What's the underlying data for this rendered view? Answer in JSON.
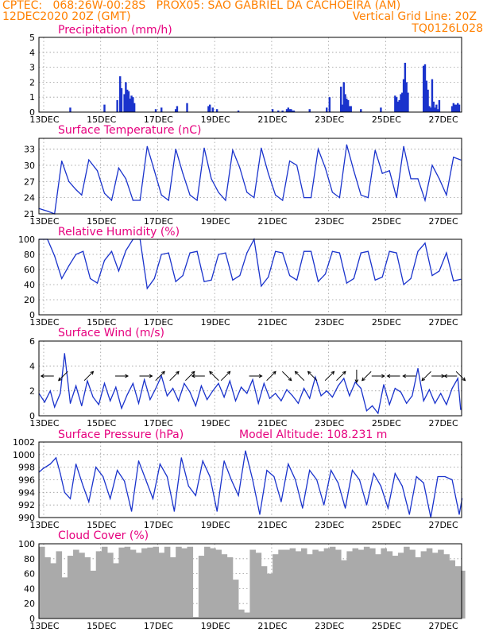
{
  "header": {
    "line1_left": "CPTEC:   068:26W-00:28S   PROX05: SAO GABRIEL DA CACHOEIRA (AM)",
    "line2_left": "12DEC2020 20Z (GMT)",
    "line2_right": "Vertical Grid Line: 20Z",
    "line3_right": "TQ0126L028"
  },
  "x_ticks": [
    "13DEC",
    "15DEC",
    "17DEC",
    "19DEC",
    "21DEC",
    "23DEC",
    "25DEC",
    "27DEC"
  ],
  "colors": {
    "series": "#1a33cc",
    "cloud": "#aaaaaa",
    "title": "#e6007e",
    "header": "#ff8000"
  },
  "panels": {
    "precip": {
      "title": "Precipitation (mm/h)"
    },
    "temp": {
      "title": "Surface Temperature (nC)"
    },
    "rh": {
      "title": "Relative Humidity (%)"
    },
    "wind": {
      "title": "Surface Wind (m/s)"
    },
    "pres": {
      "title": "Surface Pressure (hPa)",
      "extra": "Model Altitude: 108.231 m"
    },
    "cloud": {
      "title": "Cloud Cover (%)"
    }
  },
  "chart_data": [
    {
      "type": "bar",
      "title": "Precipitation (mm/h)",
      "x_unit": "days since 12DEC2020 20Z",
      "ylim": [
        0,
        5
      ],
      "yticks": [
        0,
        1,
        2,
        3,
        4,
        5
      ],
      "grid": true,
      "x": [
        1.1,
        2.3,
        2.75,
        2.85,
        2.9,
        3.0,
        3.05,
        3.1,
        3.15,
        3.2,
        3.25,
        3.3,
        3.35,
        4.1,
        4.3,
        4.8,
        4.85,
        5.2,
        5.95,
        6.0,
        6.1,
        6.25,
        7.0,
        8.2,
        8.4,
        8.55,
        8.7,
        8.75,
        8.8,
        8.85,
        8.9,
        8.95,
        9.5,
        10.1,
        10.2,
        10.6,
        10.65,
        10.7,
        10.75,
        10.8,
        10.85,
        10.9,
        10.95,
        11.3,
        12.0,
        12.5,
        12.55,
        12.6,
        12.65,
        12.7,
        12.75,
        12.8,
        12.85,
        12.9,
        12.95,
        13.5,
        13.55,
        13.6,
        13.65,
        13.7,
        13.75,
        13.8,
        13.85,
        13.9,
        13.95,
        14.0,
        14.05,
        14.5,
        14.55,
        14.6,
        14.65,
        14.7,
        14.75
      ],
      "values": [
        0.3,
        0.5,
        0.8,
        2.4,
        1.6,
        1.2,
        2.0,
        1.5,
        1.4,
        0.9,
        1.1,
        1.0,
        0.6,
        0.2,
        0.3,
        0.2,
        0.4,
        0.6,
        0.4,
        0.5,
        0.3,
        0.2,
        0.1,
        0.2,
        0.1,
        0.1,
        0.2,
        0.3,
        0.2,
        0.2,
        0.1,
        0.1,
        0.2,
        0.3,
        1.0,
        1.7,
        0.5,
        2.0,
        1.2,
        0.9,
        0.8,
        0.4,
        0.4,
        0.2,
        0.3,
        1.1,
        1.0,
        0.7,
        0.8,
        1.2,
        1.3,
        2.2,
        3.3,
        2.0,
        1.3,
        3.1,
        3.2,
        2.1,
        1.5,
        0.4,
        0.3,
        2.2,
        0.7,
        0.3,
        0.5,
        0.2,
        0.8,
        0.4,
        0.6,
        0.5,
        0.5,
        0.6,
        0.5
      ]
    },
    {
      "type": "line",
      "title": "Surface Temperature (nC)",
      "x_unit": "days since 12DEC2020 20Z",
      "ylim": [
        21,
        35
      ],
      "yticks": [
        21,
        24,
        27,
        30,
        33
      ],
      "grid": true,
      "x": [
        0,
        0.3,
        0.55,
        0.8,
        1.05,
        1.3,
        1.5,
        1.75,
        2.05,
        2.3,
        2.55,
        2.8,
        3.05,
        3.3,
        3.55,
        3.8,
        4.05,
        4.3,
        4.55,
        4.8,
        5.05,
        5.3,
        5.55,
        5.8,
        6.05,
        6.3,
        6.55,
        6.8,
        7.05,
        7.3,
        7.55,
        7.8,
        8.05,
        8.3,
        8.55,
        8.8,
        9.05,
        9.3,
        9.55,
        9.8,
        10.05,
        10.3,
        10.55,
        10.8,
        11.05,
        11.3,
        11.55,
        11.8,
        12.05,
        12.3,
        12.55,
        12.8,
        13.05,
        13.3,
        13.55,
        13.8,
        14.05,
        14.3,
        14.55,
        14.8
      ],
      "values": [
        22.0,
        21.5,
        21.0,
        30.8,
        27.0,
        25.5,
        24.5,
        31.0,
        29.0,
        24.8,
        23.5,
        29.5,
        27.5,
        23.5,
        23.5,
        33.5,
        29.0,
        24.5,
        23.5,
        33.0,
        28.5,
        24.5,
        23.5,
        33.2,
        27.5,
        25.0,
        23.5,
        32.8,
        29.5,
        25.0,
        24.0,
        33.2,
        28.5,
        24.5,
        23.5,
        30.8,
        30.0,
        24.0,
        24.0,
        33.0,
        29.5,
        25.0,
        24.0,
        33.8,
        29.0,
        24.5,
        24.0,
        32.8,
        28.5,
        29.0,
        24.0,
        33.5,
        27.5,
        27.5,
        23.5,
        30.0,
        27.5,
        24.5,
        31.5,
        31.0
      ]
    },
    {
      "type": "line",
      "title": "Relative Humidity (%)",
      "x_unit": "days since 12DEC2020 20Z",
      "ylim": [
        0,
        100
      ],
      "yticks": [
        0,
        20,
        40,
        60,
        80,
        100
      ],
      "grid": true,
      "x": [
        0,
        0.3,
        0.55,
        0.8,
        1.05,
        1.3,
        1.55,
        1.8,
        2.05,
        2.3,
        2.55,
        2.8,
        3.05,
        3.3,
        3.55,
        3.8,
        4.05,
        4.3,
        4.55,
        4.8,
        5.05,
        5.3,
        5.55,
        5.8,
        6.05,
        6.3,
        6.55,
        6.8,
        7.05,
        7.3,
        7.55,
        7.8,
        8.05,
        8.3,
        8.55,
        8.8,
        9.05,
        9.3,
        9.55,
        9.8,
        10.05,
        10.3,
        10.55,
        10.8,
        11.05,
        11.3,
        11.55,
        11.8,
        12.05,
        12.3,
        12.55,
        12.8,
        13.05,
        13.3,
        13.55,
        13.8,
        14.05,
        14.3,
        14.55,
        14.8
      ],
      "values": [
        100,
        100,
        78,
        48,
        65,
        80,
        84,
        48,
        42,
        72,
        84,
        58,
        85,
        100,
        100,
        35,
        48,
        80,
        82,
        44,
        52,
        82,
        84,
        44,
        46,
        80,
        82,
        46,
        52,
        82,
        100,
        38,
        50,
        84,
        82,
        52,
        46,
        84,
        84,
        44,
        54,
        84,
        82,
        42,
        48,
        82,
        84,
        46,
        50,
        84,
        82,
        40,
        48,
        84,
        95,
        52,
        58,
        82,
        45,
        47
      ]
    },
    {
      "type": "line",
      "title": "Surface Wind (m/s)",
      "x_unit": "days since 12DEC2020 20Z",
      "ylim": [
        0,
        6
      ],
      "yticks": [
        0,
        2,
        4,
        6
      ],
      "grid": true,
      "x": [
        0,
        0.2,
        0.4,
        0.55,
        0.75,
        0.9,
        1.1,
        1.3,
        1.5,
        1.7,
        1.9,
        2.1,
        2.3,
        2.5,
        2.7,
        2.9,
        3.1,
        3.3,
        3.5,
        3.7,
        3.9,
        4.1,
        4.3,
        4.5,
        4.7,
        4.9,
        5.1,
        5.3,
        5.5,
        5.7,
        5.9,
        6.1,
        6.3,
        6.5,
        6.7,
        6.9,
        7.1,
        7.3,
        7.5,
        7.7,
        7.9,
        8.1,
        8.3,
        8.5,
        8.7,
        8.9,
        9.1,
        9.3,
        9.5,
        9.7,
        9.9,
        10.1,
        10.3,
        10.5,
        10.7,
        10.9,
        11.1,
        11.3,
        11.5,
        11.7,
        11.9,
        12.1,
        12.3,
        12.5,
        12.7,
        12.9,
        13.1,
        13.3,
        13.5,
        13.7,
        13.9,
        14.1,
        14.3,
        14.5,
        14.7,
        14.8
      ],
      "values": [
        1.8,
        1.1,
        2.0,
        0.7,
        1.8,
        5.0,
        1.0,
        2.4,
        0.8,
        2.8,
        1.5,
        0.9,
        2.6,
        1.2,
        2.3,
        0.6,
        1.7,
        2.6,
        1.0,
        2.9,
        1.3,
        2.2,
        3.2,
        1.6,
        2.2,
        1.2,
        2.6,
        1.9,
        0.8,
        2.4,
        1.3,
        2.0,
        2.6,
        1.5,
        2.8,
        1.2,
        2.3,
        1.8,
        2.9,
        1.0,
        2.6,
        1.4,
        1.8,
        1.2,
        2.1,
        1.6,
        1.0,
        2.2,
        1.4,
        3.1,
        1.6,
        2.0,
        1.5,
        2.4,
        3.0,
        1.6,
        2.7,
        2.2,
        0.4,
        0.8,
        0.2,
        2.5,
        0.9,
        2.2,
        1.9,
        1.0,
        1.6,
        3.8,
        1.2,
        2.1,
        1.0,
        1.8,
        0.9,
        2.2,
        3.0,
        0.5
      ],
      "vectors_x": [
        0.3,
        0.85,
        1.75,
        2.9,
        3.75,
        4.25,
        4.75,
        5.3,
        5.6,
        6.15,
        6.55,
        7.6,
        8.15,
        8.7,
        9.15,
        9.6,
        10.2,
        10.6,
        11.15,
        11.5,
        11.9,
        12.45,
        13.0,
        13.6,
        14.0,
        14.45,
        14.8
      ],
      "vectors_dir": [
        "W",
        "SW",
        "NE",
        "E",
        "E",
        "NE",
        "NE",
        "NE",
        "W",
        "NW",
        "NE",
        "E",
        "NE",
        "SE",
        "NW",
        "NW",
        "NE",
        "NE",
        "S",
        "SW",
        "E",
        "W",
        "W",
        "SW",
        "E",
        "W",
        "SE"
      ]
    },
    {
      "type": "line",
      "title": "Surface Pressure (hPa)",
      "x_unit": "days since 12DEC2020 20Z",
      "ylim": [
        990,
        1002
      ],
      "yticks": [
        990,
        992,
        994,
        996,
        998,
        1000,
        1002
      ],
      "grid": true,
      "x": [
        0,
        0.15,
        0.4,
        0.6,
        0.75,
        0.9,
        1.1,
        1.3,
        1.55,
        1.75,
        2.0,
        2.25,
        2.5,
        2.75,
        3.0,
        3.25,
        3.5,
        3.75,
        4.0,
        4.25,
        4.5,
        4.75,
        5.0,
        5.25,
        5.5,
        5.75,
        6.0,
        6.25,
        6.5,
        6.75,
        7.0,
        7.25,
        7.5,
        7.75,
        8.0,
        8.25,
        8.5,
        8.75,
        9.0,
        9.25,
        9.5,
        9.75,
        10.0,
        10.25,
        10.5,
        10.75,
        11.0,
        11.25,
        11.5,
        11.75,
        12.0,
        12.25,
        12.5,
        12.75,
        13.0,
        13.25,
        13.5,
        13.75,
        14.0,
        14.25,
        14.5,
        14.75,
        14.85
      ],
      "values": [
        997.2,
        997.8,
        998.5,
        999.5,
        997.0,
        994.0,
        993.0,
        998.5,
        995.0,
        992.5,
        998.0,
        996.5,
        993.0,
        997.5,
        995.8,
        991.0,
        999.0,
        996.0,
        993.0,
        998.5,
        996.5,
        991.0,
        999.5,
        995.0,
        993.5,
        999.0,
        996.5,
        991.0,
        999.0,
        996.0,
        993.5,
        1000.6,
        996.0,
        990.5,
        997.5,
        996.5,
        992.5,
        998.5,
        996.0,
        991.5,
        997.5,
        996.0,
        992.0,
        997.5,
        995.5,
        991.5,
        997.5,
        996.0,
        992.0,
        997.0,
        995.0,
        991.5,
        997.0,
        995.0,
        990.5,
        996.5,
        995.5,
        990.0,
        996.5,
        996.5,
        996.0,
        990.5,
        993.0
      ]
    },
    {
      "type": "bar",
      "title": "Cloud Cover (%)",
      "x_unit": "days since 12DEC2020 20Z",
      "ylim": [
        0,
        100
      ],
      "yticks": [
        0,
        20,
        40,
        60,
        80,
        100
      ],
      "grid": true,
      "x": [
        0.1,
        0.3,
        0.5,
        0.7,
        0.9,
        1.1,
        1.3,
        1.5,
        1.7,
        1.9,
        2.1,
        2.3,
        2.5,
        2.7,
        2.9,
        3.1,
        3.3,
        3.5,
        3.7,
        3.9,
        4.1,
        4.3,
        4.5,
        4.7,
        4.9,
        5.1,
        5.3,
        5.5,
        5.7,
        5.9,
        6.1,
        6.3,
        6.5,
        6.7,
        6.9,
        7.1,
        7.3,
        7.5,
        7.7,
        7.9,
        8.1,
        8.3,
        8.5,
        8.7,
        8.9,
        9.1,
        9.3,
        9.5,
        9.7,
        9.9,
        10.1,
        10.3,
        10.5,
        10.7,
        10.9,
        11.1,
        11.3,
        11.5,
        11.7,
        11.9,
        12.1,
        12.3,
        12.5,
        12.7,
        12.9,
        13.1,
        13.3,
        13.5,
        13.7,
        13.9,
        14.1,
        14.3,
        14.5,
        14.7,
        14.85
      ],
      "values": [
        96,
        82,
        74,
        90,
        55,
        84,
        92,
        88,
        82,
        64,
        90,
        96,
        88,
        74,
        95,
        96,
        92,
        88,
        94,
        95,
        96,
        88,
        96,
        82,
        96,
        94,
        96,
        2,
        84,
        96,
        94,
        92,
        86,
        82,
        52,
        12,
        8,
        92,
        88,
        70,
        60,
        86,
        92,
        92,
        94,
        90,
        94,
        86,
        92,
        90,
        94,
        96,
        92,
        78,
        90,
        94,
        92,
        96,
        94,
        86,
        94,
        90,
        84,
        88,
        96,
        92,
        82,
        90,
        94,
        88,
        92,
        86,
        78,
        70,
        64
      ]
    }
  ]
}
